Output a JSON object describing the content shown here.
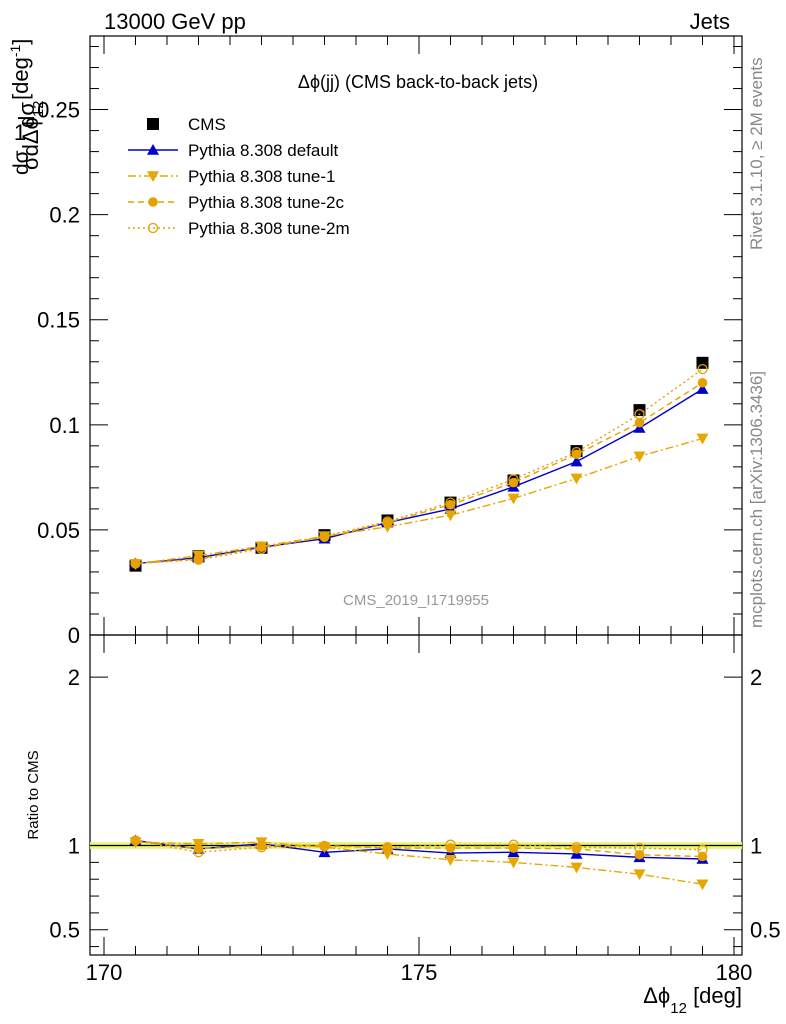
{
  "header": {
    "energy_label": "13000 GeV pp",
    "category_label": "Jets"
  },
  "side_labels": {
    "rivet": "Rivet 3.1.10, ≥ 2M events",
    "mcplots": "mcplots.cern.ch [arXiv:1306.3436]"
  },
  "main_plot": {
    "title": "Δϕ(jj) (CMS back-to-back jets)",
    "analysis_id": "CMS_2019_I1719955",
    "ylabel": "1/σ dσ/dΔϕ_12 [deg^-1]"
  },
  "ratio_plot": {
    "ylabel": "Ratio to CMS"
  },
  "xlabel": "Δϕ_12 [deg]",
  "chart_data": [
    {
      "type": "line",
      "title": "Δϕ(jj) (CMS back-to-back jets)",
      "xlabel": "Δϕ_12 [deg]",
      "ylabel": "1/σ dσ/dΔϕ_12 [deg^-1]",
      "xlim": [
        170,
        180
      ],
      "ylim": [
        0,
        0.285
      ],
      "x_ticks": [
        170,
        175,
        180
      ],
      "y_ticks": [
        0,
        0.05,
        0.1,
        0.15,
        0.2,
        0.25
      ],
      "y_tick_labels": [
        "0",
        "0.05",
        "0.1",
        "0.15",
        "0.2",
        "0.25"
      ],
      "legend_position": "top-left",
      "x": [
        170.5,
        171.5,
        172.5,
        173.5,
        174.5,
        175.5,
        176.5,
        177.5,
        178.5,
        179.5
      ],
      "series": [
        {
          "name": "CMS",
          "color": "#000000",
          "marker": "square",
          "line": "none",
          "values": [
            0.033,
            0.0375,
            0.0415,
            0.0475,
            0.0545,
            0.063,
            0.0735,
            0.0875,
            0.107,
            0.1295
          ]
        },
        {
          "name": "Pythia 8.308 default",
          "color": "#0000cc",
          "marker": "triangle-up",
          "line": "solid",
          "values": [
            0.034,
            0.0368,
            0.0418,
            0.0458,
            0.0535,
            0.06,
            0.0705,
            0.0825,
            0.0985,
            0.117
          ]
        },
        {
          "name": "Pythia 8.308 tune-1",
          "color": "#e6a800",
          "marker": "triangle-down",
          "line": "dashdot",
          "values": [
            0.0338,
            0.0378,
            0.0422,
            0.047,
            0.0515,
            0.057,
            0.065,
            0.0745,
            0.085,
            0.0935
          ]
        },
        {
          "name": "Pythia 8.308 tune-2c",
          "color": "#e6a000",
          "marker": "circle",
          "line": "dashed",
          "values": [
            0.034,
            0.0362,
            0.0418,
            0.0465,
            0.0535,
            0.062,
            0.0725,
            0.086,
            0.101,
            0.12
          ]
        },
        {
          "name": "Pythia 8.308 tune-2m",
          "color": "#e6a000",
          "marker": "circle-open",
          "line": "dotted",
          "values": [
            0.034,
            0.0358,
            0.041,
            0.047,
            0.054,
            0.063,
            0.074,
            0.087,
            0.105,
            0.1265
          ]
        }
      ]
    },
    {
      "type": "line",
      "ylabel": "Ratio to CMS",
      "xlabel": "Δϕ_12 [deg]",
      "xlim": [
        170,
        180
      ],
      "ylim": [
        0.35,
        2.25
      ],
      "x_ticks": [
        170,
        175,
        180
      ],
      "y_ticks": [
        0.5,
        1,
        2
      ],
      "y_tick_labels": [
        "0.5",
        "1",
        "2"
      ],
      "x": [
        170.5,
        171.5,
        172.5,
        173.5,
        174.5,
        175.5,
        176.5,
        177.5,
        178.5,
        179.5
      ],
      "reference_band": {
        "low": 0.98,
        "high": 1.02,
        "color": "#e8f57c"
      },
      "series": [
        {
          "name": "Pythia 8.308 default",
          "color": "#0000cc",
          "marker": "triangle-up",
          "line": "solid",
          "values": [
            1.03,
            0.98,
            1.01,
            0.96,
            0.98,
            0.955,
            0.96,
            0.95,
            0.93,
            0.92
          ]
        },
        {
          "name": "Pythia 8.308 tune-1",
          "color": "#e6a800",
          "marker": "triangle-down",
          "line": "dashdot",
          "values": [
            1.02,
            1.01,
            1.02,
            0.99,
            0.95,
            0.915,
            0.9,
            0.87,
            0.83,
            0.77
          ]
        },
        {
          "name": "Pythia 8.308 tune-2c",
          "color": "#e6a000",
          "marker": "circle",
          "line": "dashed",
          "values": [
            1.03,
            0.98,
            1.0,
            1.0,
            0.985,
            0.985,
            0.985,
            0.98,
            0.945,
            0.935
          ]
        },
        {
          "name": "Pythia 8.308 tune-2m",
          "color": "#e6a000",
          "marker": "circle-open",
          "line": "dotted",
          "values": [
            1.03,
            0.96,
            0.99,
            0.995,
            0.99,
            1.005,
            1.005,
            0.99,
            0.985,
            0.975
          ]
        }
      ]
    }
  ]
}
